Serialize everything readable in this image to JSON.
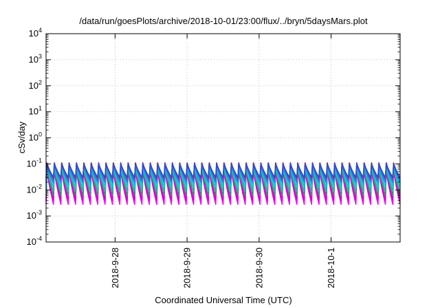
{
  "chart_data": {
    "type": "line",
    "title": "/data/run/goesPlots/archive/2018-10-01/23:00/flux/../bryn/5daysMars.plot",
    "xlabel": "Coordinated Universal Time (UTC)",
    "ylabel": "cSv/day",
    "yscale": "log",
    "ylim": [
      0.0001,
      10000
    ],
    "y_ticks": [
      {
        "base": "10",
        "exp": "-4"
      },
      {
        "base": "10",
        "exp": "-3"
      },
      {
        "base": "10",
        "exp": "-2"
      },
      {
        "base": "10",
        "exp": "-1"
      },
      {
        "base": "10",
        "exp": "0"
      },
      {
        "base": "10",
        "exp": "1"
      },
      {
        "base": "10",
        "exp": "2"
      },
      {
        "base": "10",
        "exp": "3"
      },
      {
        "base": "10",
        "exp": "4"
      }
    ],
    "xlim": [
      "2018-09-27T01:00",
      "2018-10-01T23:00"
    ],
    "x_ticks": [
      {
        "label": "2018-9-28",
        "date": "2018-09-28"
      },
      {
        "label": "2018-9-29",
        "date": "2018-09-29"
      },
      {
        "label": "2018-9-30",
        "date": "2018-09-30"
      },
      {
        "label": "2018-10-1",
        "date": "2018-10-01"
      }
    ],
    "grid": true,
    "pattern": {
      "description_free": true,
      "cycles": 48,
      "series_envelopes": [
        {
          "color": "#ff00ff",
          "peak": 0.06,
          "trough": 0.0028
        },
        {
          "color": "#cc00cc",
          "peak": 0.065,
          "trough": 0.004
        },
        {
          "color": "#3a8f6f",
          "peak": 0.07,
          "trough": 0.006
        },
        {
          "color": "#20b2aa",
          "peak": 0.075,
          "trough": 0.009
        },
        {
          "color": "#00ced1",
          "peak": 0.08,
          "trough": 0.013
        },
        {
          "color": "#1e90ff",
          "peak": 0.09,
          "trough": 0.018
        },
        {
          "color": "#4169e1",
          "peak": 0.1,
          "trough": 0.022
        },
        {
          "color": "#ff0000",
          "peak": 0.11,
          "trough": 0.028
        },
        {
          "color": "#1f4fd6",
          "peak": 0.105,
          "trough": 0.03
        }
      ]
    }
  }
}
